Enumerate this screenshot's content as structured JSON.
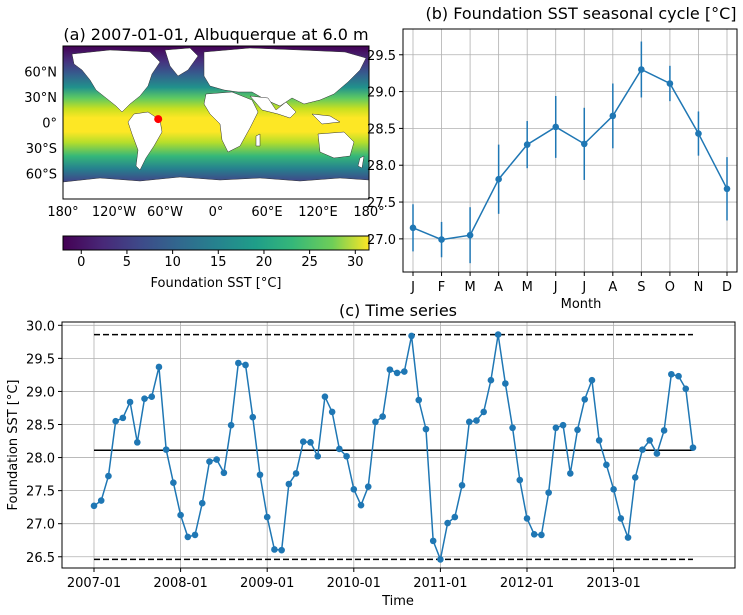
{
  "colors": {
    "series": "#1f77b4",
    "land": "#ffffff",
    "ocean_low": "#440154",
    "ocean_high": "#fde725",
    "marker": "#ff0000"
  },
  "chart_data": [
    {
      "id": "a",
      "type": "heatmap",
      "title": "(a) 2007-01-01, Albuquerque at 6.0 m",
      "lon_ticks": [
        "180°",
        "120°W",
        "60°W",
        "0°",
        "60°E",
        "120°E",
        "180°"
      ],
      "lat_ticks": [
        "60°N",
        "30°N",
        "0°",
        "30°S",
        "60°S"
      ],
      "colorbar": {
        "label": "Foundation SST [°C]",
        "ticks": [
          0,
          5,
          10,
          15,
          20,
          25,
          30
        ],
        "range": [
          -2,
          31.5
        ]
      },
      "marker": {
        "lon": -68,
        "lat": 4
      }
    },
    {
      "id": "b",
      "type": "line",
      "title": "(b) Foundation SST seasonal cycle [°C]",
      "xlabel": "Month",
      "categories": [
        "J",
        "F",
        "M",
        "A",
        "M",
        "J",
        "J",
        "A",
        "S",
        "O",
        "N",
        "D"
      ],
      "values": [
        27.15,
        26.99,
        27.05,
        27.81,
        28.28,
        28.52,
        28.29,
        28.67,
        29.3,
        29.11,
        28.43,
        27.68
      ],
      "errors": [
        0.32,
        0.24,
        0.38,
        0.47,
        0.32,
        0.42,
        0.49,
        0.44,
        0.38,
        0.24,
        0.3,
        0.43
      ],
      "ylim": [
        26.55,
        29.85
      ],
      "yticks": [
        "27.0",
        "27.5",
        "28.0",
        "28.5",
        "29.0",
        "29.5"
      ],
      "grid": true
    },
    {
      "id": "c",
      "type": "line",
      "title": "(c) Time series",
      "xlabel": "Time",
      "ylabel": "Foundation SST [°C]",
      "start": "2007-01",
      "values": [
        27.27,
        27.35,
        27.72,
        28.55,
        28.6,
        28.84,
        28.23,
        28.89,
        28.92,
        29.37,
        28.12,
        27.62,
        27.13,
        26.8,
        26.83,
        27.31,
        27.94,
        27.97,
        27.77,
        28.49,
        29.43,
        29.4,
        28.61,
        27.74,
        27.1,
        26.61,
        26.6,
        27.6,
        27.76,
        28.24,
        28.23,
        28.02,
        28.92,
        28.69,
        28.13,
        28.02,
        27.52,
        27.28,
        27.56,
        28.54,
        28.62,
        29.33,
        29.28,
        29.3,
        29.84,
        28.87,
        28.43,
        26.74,
        26.46,
        27.01,
        27.1,
        27.58,
        28.54,
        28.56,
        28.69,
        29.17,
        29.86,
        29.12,
        28.45,
        27.66,
        27.08,
        26.84,
        26.83,
        27.47,
        28.45,
        28.49,
        27.76,
        28.42,
        28.88,
        29.17,
        28.26,
        27.89,
        27.52,
        27.08,
        26.79,
        27.7,
        28.12,
        28.26,
        28.06,
        28.41,
        29.26,
        29.23,
        29.04,
        28.15
      ],
      "mean": 28.11,
      "max": 29.86,
      "min": 26.46,
      "xticks": [
        "2007-01",
        "2008-01",
        "2009-01",
        "2010-01",
        "2011-01",
        "2012-01",
        "2013-01"
      ],
      "ylim": [
        26.33,
        30.05
      ],
      "yticks": [
        "26.5",
        "27.0",
        "27.5",
        "28.0",
        "28.5",
        "29.0",
        "29.5",
        "30.0"
      ],
      "grid": true
    }
  ]
}
